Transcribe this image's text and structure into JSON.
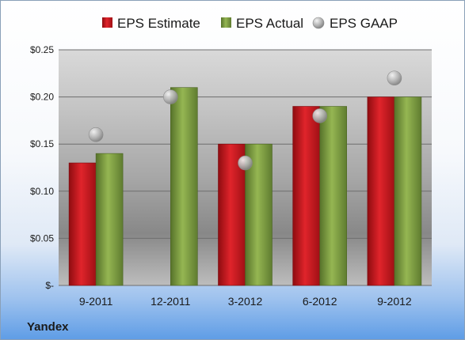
{
  "company": "Yandex",
  "chart_data": {
    "type": "bar",
    "categories": [
      "9-2011",
      "12-2011",
      "3-2012",
      "6-2012",
      "9-2012"
    ],
    "series": [
      {
        "name": "EPS Estimate",
        "type": "bar",
        "color": "#c8161d",
        "values": [
          0.13,
          null,
          0.15,
          0.19,
          0.2
        ]
      },
      {
        "name": "EPS Actual",
        "type": "bar",
        "color": "#7a9a3c",
        "values": [
          0.14,
          0.21,
          0.15,
          0.19,
          0.2
        ]
      },
      {
        "name": "EPS GAAP",
        "type": "scatter",
        "color": "#b4b4b4",
        "values": [
          0.16,
          0.2,
          0.13,
          0.18,
          0.22
        ]
      }
    ],
    "yticks": [
      "$-",
      "$0.05",
      "$0.10",
      "$0.15",
      "$0.20",
      "$0.25"
    ],
    "ylim": [
      0,
      0.25
    ],
    "grid": true,
    "legend": "top"
  }
}
